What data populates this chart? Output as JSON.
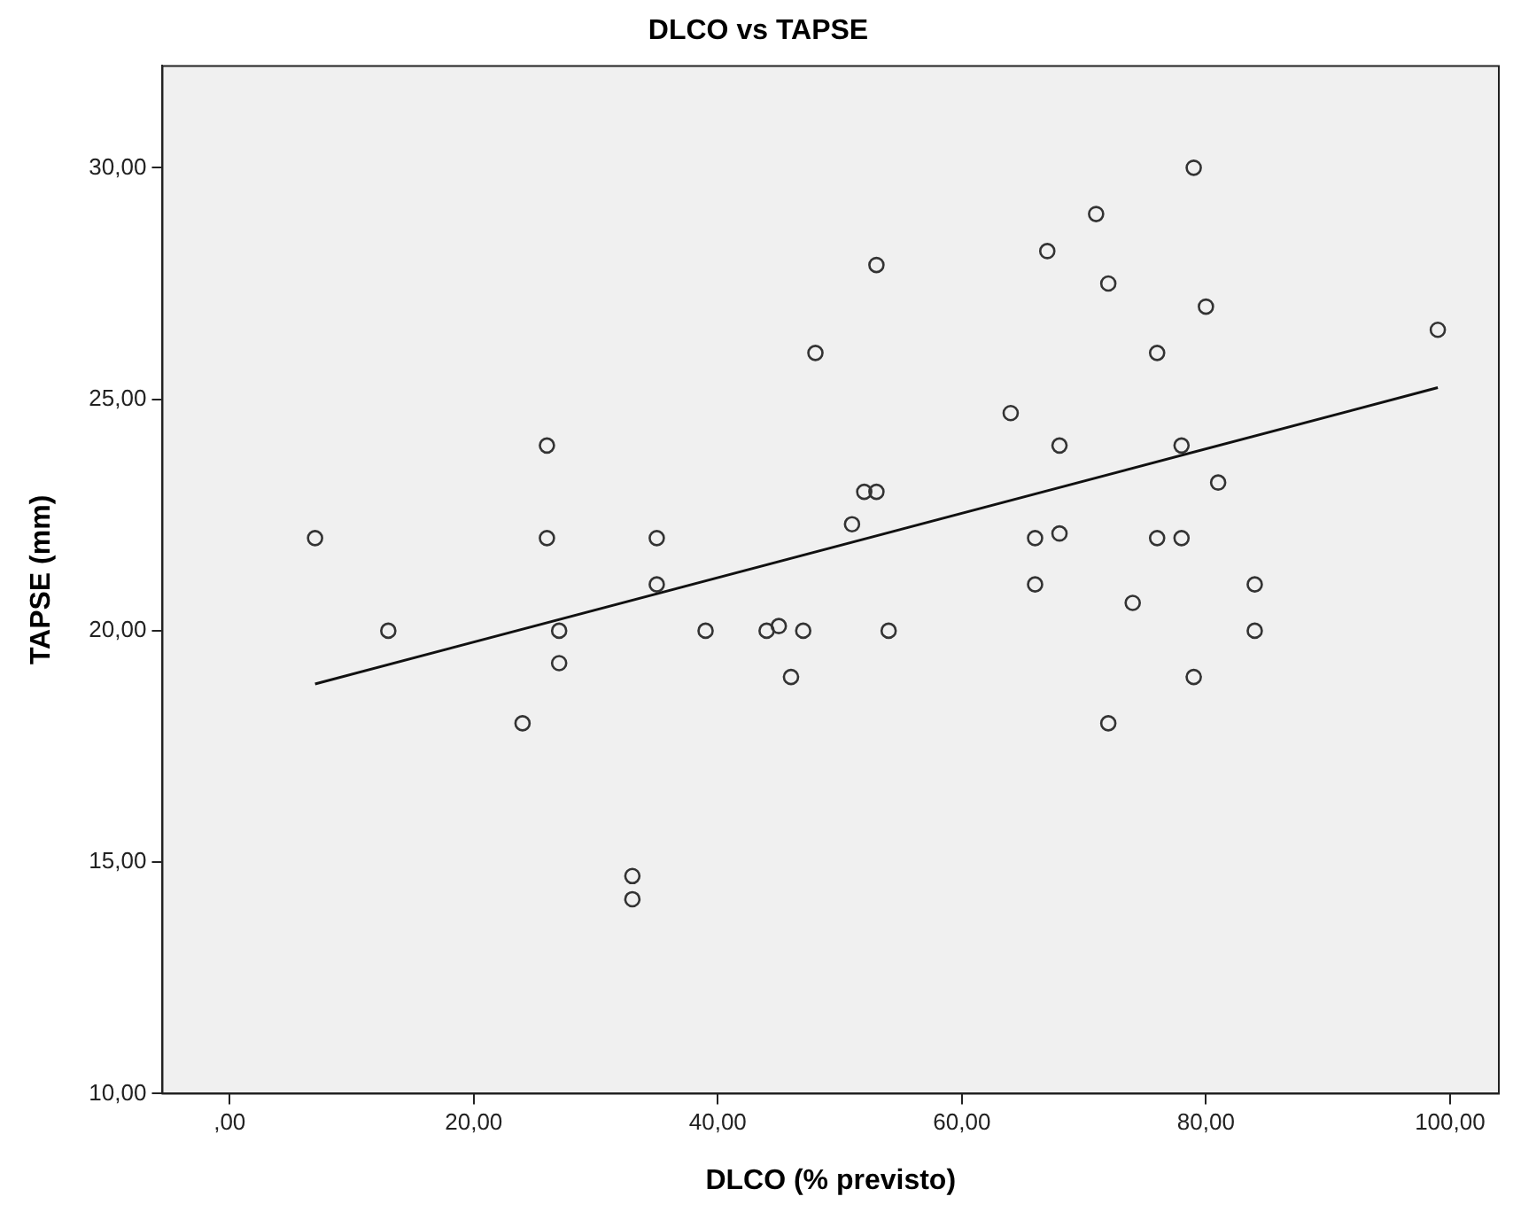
{
  "chart_data": {
    "type": "scatter",
    "title": "DLCO vs TAPSE",
    "xlabel": "DLCO (% previsto)",
    "ylabel": "TAPSE (mm)",
    "xlim": [
      -5.5,
      104
    ],
    "ylim": [
      10,
      32.2
    ],
    "xticks": [
      {
        "value": 0,
        "label": ",00"
      },
      {
        "value": 20,
        "label": "20,00"
      },
      {
        "value": 40,
        "label": "40,00"
      },
      {
        "value": 60,
        "label": "60,00"
      },
      {
        "value": 80,
        "label": "80,00"
      },
      {
        "value": 100,
        "label": "100,00"
      }
    ],
    "yticks": [
      {
        "value": 10,
        "label": "10,00"
      },
      {
        "value": 15,
        "label": "15,00"
      },
      {
        "value": 20,
        "label": "20,00"
      },
      {
        "value": 25,
        "label": "25,00"
      },
      {
        "value": 30,
        "label": "30,00"
      }
    ],
    "grid": false,
    "legend": false,
    "marker": "circle",
    "series": [
      {
        "color": "#333333",
        "x": [
          7,
          13,
          24,
          26,
          26,
          27,
          27,
          33,
          33,
          35,
          35,
          39,
          44,
          45,
          46,
          47,
          48,
          51,
          52,
          53,
          53,
          54,
          64,
          66,
          66,
          67,
          68,
          68,
          71,
          72,
          72,
          74,
          76,
          76,
          78,
          78,
          79,
          79,
          80,
          81,
          84,
          84,
          99
        ],
        "values": [
          22,
          20,
          18,
          24,
          22,
          20,
          19.3,
          14.7,
          14.2,
          22,
          21,
          20,
          20,
          20.1,
          19,
          20,
          26,
          22.3,
          23,
          23,
          27.9,
          20,
          24.7,
          22,
          21,
          28.2,
          24,
          22.1,
          29,
          27.5,
          18,
          20.6,
          26,
          22,
          24,
          22,
          30,
          19,
          27,
          23.2,
          21,
          20,
          26.5
        ]
      },
      {
        "type": "line",
        "color": "#111111",
        "line_style": "solid",
        "marker": "none",
        "x": [
          7,
          99
        ],
        "values": [
          18.85,
          25.25
        ]
      }
    ]
  }
}
